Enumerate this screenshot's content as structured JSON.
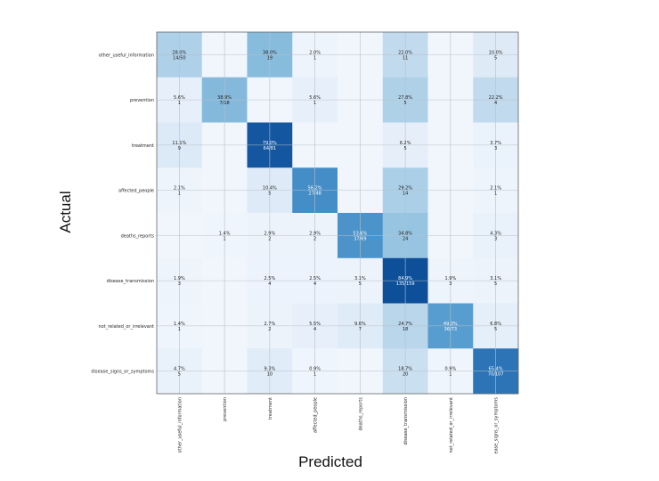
{
  "chart_data": {
    "type": "heatmap",
    "title": "",
    "xlabel": "Predicted",
    "ylabel": "Actual",
    "grid": true,
    "categories": [
      "other_useful_information",
      "prevention",
      "treatment",
      "affected_people",
      "deaths_reports",
      "disease_transmission",
      "not_related_or_irrelevant",
      "disease_signs_or_symptoms"
    ],
    "x_tick_labels": [
      "other_useful_information",
      "prevention",
      "treatment",
      "affected_people",
      "deaths_reports",
      "disease_transmission",
      "not_related_or_irrelevant",
      "ease_signs_or_symptoms"
    ],
    "y_tick_labels": [
      "other_useful_information",
      "prevention",
      "treatment",
      "affected_people",
      "deaths_reports",
      "disease_transmission",
      "not_related_or_irrelevant",
      "disease_signs_or_symptoms"
    ],
    "cells": [
      [
        {
          "pct": 28.0,
          "text": "28.0%",
          "sub": "14/50"
        },
        null,
        {
          "pct": 38.0,
          "text": "38.0%",
          "sub": "19"
        },
        {
          "pct": 2.0,
          "text": "2.0%",
          "sub": "1"
        },
        null,
        {
          "pct": 22.0,
          "text": "22.0%",
          "sub": "11"
        },
        null,
        {
          "pct": 10.0,
          "text": "10.0%",
          "sub": "5"
        }
      ],
      [
        {
          "pct": 5.6,
          "text": "5.6%",
          "sub": "1"
        },
        {
          "pct": 38.9,
          "text": "38.9%",
          "sub": "7/18"
        },
        null,
        {
          "pct": 5.6,
          "text": "5.6%",
          "sub": "1"
        },
        null,
        {
          "pct": 27.8,
          "text": "27.8%",
          "sub": "5"
        },
        null,
        {
          "pct": 22.2,
          "text": "22.2%",
          "sub": "4"
        }
      ],
      [
        {
          "pct": 11.1,
          "text": "11.1%",
          "sub": "9"
        },
        null,
        {
          "pct": 79.0,
          "text": "79.0%",
          "sub": "64/81"
        },
        null,
        null,
        {
          "pct": 6.2,
          "text": "6.2%",
          "sub": "5"
        },
        null,
        {
          "pct": 3.7,
          "text": "3.7%",
          "sub": "3"
        }
      ],
      [
        {
          "pct": 2.1,
          "text": "2.1%",
          "sub": "1"
        },
        null,
        {
          "pct": 10.4,
          "text": "10.4%",
          "sub": "5"
        },
        {
          "pct": 56.2,
          "text": "56.2%",
          "sub": "27/48"
        },
        null,
        {
          "pct": 29.2,
          "text": "29.2%",
          "sub": "14"
        },
        null,
        {
          "pct": 2.1,
          "text": "2.1%",
          "sub": "1"
        }
      ],
      [
        null,
        {
          "pct": 1.4,
          "text": "1.4%",
          "sub": "1"
        },
        {
          "pct": 2.9,
          "text": "2.9%",
          "sub": "2"
        },
        {
          "pct": 2.9,
          "text": "2.9%",
          "sub": "2"
        },
        {
          "pct": 53.6,
          "text": "53.6%",
          "sub": "37/69"
        },
        {
          "pct": 34.8,
          "text": "34.8%",
          "sub": "24"
        },
        null,
        {
          "pct": 4.3,
          "text": "4.3%",
          "sub": "3"
        }
      ],
      [
        {
          "pct": 1.9,
          "text": "1.9%",
          "sub": "3"
        },
        null,
        {
          "pct": 2.5,
          "text": "2.5%",
          "sub": "4"
        },
        {
          "pct": 2.5,
          "text": "2.5%",
          "sub": "4"
        },
        {
          "pct": 3.1,
          "text": "3.1%",
          "sub": "5"
        },
        {
          "pct": 84.9,
          "text": "84.9%",
          "sub": "135/159"
        },
        {
          "pct": 1.9,
          "text": "1.9%",
          "sub": "3"
        },
        {
          "pct": 3.1,
          "text": "3.1%",
          "sub": "5"
        }
      ],
      [
        {
          "pct": 1.4,
          "text": "1.4%",
          "sub": "1"
        },
        null,
        {
          "pct": 2.7,
          "text": "2.7%",
          "sub": "2"
        },
        {
          "pct": 5.5,
          "text": "5.5%",
          "sub": "4"
        },
        {
          "pct": 9.6,
          "text": "9.6%",
          "sub": "7"
        },
        {
          "pct": 24.7,
          "text": "24.7%",
          "sub": "18"
        },
        {
          "pct": 49.3,
          "text": "49.3%",
          "sub": "36/73"
        },
        {
          "pct": 6.8,
          "text": "6.8%",
          "sub": "5"
        }
      ],
      [
        {
          "pct": 4.7,
          "text": "4.7%",
          "sub": "5"
        },
        null,
        {
          "pct": 9.3,
          "text": "9.3%",
          "sub": "10"
        },
        {
          "pct": 0.9,
          "text": "0.9%",
          "sub": "1"
        },
        null,
        {
          "pct": 18.7,
          "text": "18.7%",
          "sub": "20"
        },
        {
          "pct": 0.9,
          "text": "0.9%",
          "sub": "1"
        },
        {
          "pct": 65.4,
          "text": "65.4%",
          "sub": "70/107"
        }
      ]
    ],
    "color_scale": [
      "#f7fbff",
      "#08519c"
    ]
  }
}
